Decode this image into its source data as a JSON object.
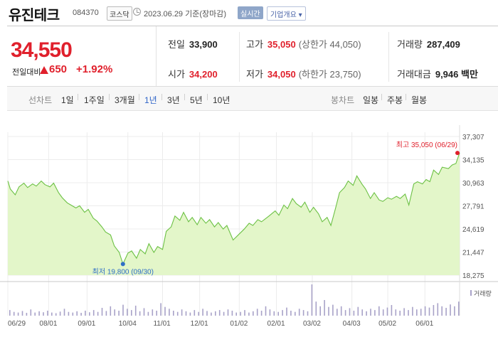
{
  "header": {
    "stock_name": "유진테크",
    "stock_code": "084370",
    "market_badge": "코스닥",
    "clock_icon": "clock-icon",
    "date_text": "2023.06.29 기준(장마감)",
    "realtime_button": "실시간",
    "company_info_button": "기업개요 ▾"
  },
  "quote": {
    "price": "34,550",
    "change_label": "전일대비",
    "change_value": "650",
    "change_pct": "+1.92%",
    "up_color": "#e0202c",
    "prev_close_label": "전일",
    "prev_close": "33,900",
    "high_label": "고가",
    "high": "35,050",
    "upper_limit": "(상한가 44,050)",
    "volume_label": "거래량",
    "volume": "287,409",
    "open_label": "시가",
    "open": "34,200",
    "low_label": "저가",
    "low": "34,050",
    "lower_limit": "(하한가 23,750)",
    "trade_value_label": "거래대금",
    "trade_value": "9,946 백만"
  },
  "tabs": {
    "line_head": "선차트",
    "line_tabs": [
      "1일",
      "1주일",
      "3개월",
      "1년",
      "3년",
      "5년",
      "10년"
    ],
    "active": "1년",
    "candle_head": "봉차트",
    "candle_tabs": [
      "일봉",
      "주봉",
      "월봉"
    ]
  },
  "chart_data": {
    "type": "area",
    "x_range": [
      "2022-06-29",
      "2023-06-29"
    ],
    "x_tick_labels": [
      "06/29",
      "08/01",
      "09/01",
      "10/04",
      "11/01",
      "12/01",
      "01/02",
      "02/01",
      "03/02",
      "04/03",
      "05/02",
      "06/01"
    ],
    "y_tick_labels": [
      "37,307",
      "34,135",
      "30,963",
      "27,791",
      "24,619",
      "21,447",
      "18,275"
    ],
    "ylim": [
      18275,
      37307
    ],
    "grid": true,
    "fill_color": "#e3f6c9",
    "line_color": "#6cc144",
    "high_annotation": "최고 35,050 (06/29)",
    "low_annotation": "최저 19,800 (09/30)",
    "high_color": "#e0202c",
    "low_color": "#2f6fc6",
    "volume_label": "거래량",
    "volume_color": "#a8a2c8",
    "price": [
      [
        "2022-06-29",
        31200
      ],
      [
        "2022-07-01",
        30100
      ],
      [
        "2022-07-05",
        29300
      ],
      [
        "2022-07-08",
        30400
      ],
      [
        "2022-07-12",
        30900
      ],
      [
        "2022-07-15",
        30300
      ],
      [
        "2022-07-19",
        30800
      ],
      [
        "2022-07-22",
        30500
      ],
      [
        "2022-07-26",
        31200
      ],
      [
        "2022-07-29",
        30700
      ],
      [
        "2022-08-02",
        30400
      ],
      [
        "2022-08-05",
        30900
      ],
      [
        "2022-08-09",
        29600
      ],
      [
        "2022-08-12",
        28900
      ],
      [
        "2022-08-16",
        28200
      ],
      [
        "2022-08-19",
        27900
      ],
      [
        "2022-08-23",
        27500
      ],
      [
        "2022-08-26",
        27800
      ],
      [
        "2022-08-30",
        26900
      ],
      [
        "2022-09-02",
        27300
      ],
      [
        "2022-09-06",
        26100
      ],
      [
        "2022-09-09",
        25700
      ],
      [
        "2022-09-13",
        24900
      ],
      [
        "2022-09-16",
        24200
      ],
      [
        "2022-09-20",
        23800
      ],
      [
        "2022-09-23",
        22300
      ],
      [
        "2022-09-27",
        21400
      ],
      [
        "2022-09-30",
        19800
      ],
      [
        "2022-10-04",
        21300
      ],
      [
        "2022-10-07",
        21600
      ],
      [
        "2022-10-11",
        20600
      ],
      [
        "2022-10-14",
        21800
      ],
      [
        "2022-10-18",
        21200
      ],
      [
        "2022-10-21",
        22600
      ],
      [
        "2022-10-25",
        21400
      ],
      [
        "2022-10-28",
        22200
      ],
      [
        "2022-11-01",
        21800
      ],
      [
        "2022-11-04",
        24300
      ],
      [
        "2022-11-08",
        24900
      ],
      [
        "2022-11-11",
        26400
      ],
      [
        "2022-11-15",
        25800
      ],
      [
        "2022-11-18",
        26900
      ],
      [
        "2022-11-22",
        25600
      ],
      [
        "2022-11-25",
        26200
      ],
      [
        "2022-11-29",
        25200
      ],
      [
        "2022-12-02",
        26200
      ],
      [
        "2022-12-06",
        25400
      ],
      [
        "2022-12-09",
        25900
      ],
      [
        "2022-12-13",
        24900
      ],
      [
        "2022-12-16",
        25500
      ],
      [
        "2022-12-20",
        24600
      ],
      [
        "2022-12-23",
        25100
      ],
      [
        "2022-12-28",
        23100
      ],
      [
        "2023-01-03",
        24100
      ],
      [
        "2023-01-06",
        24600
      ],
      [
        "2023-01-10",
        25400
      ],
      [
        "2023-01-13",
        25100
      ],
      [
        "2023-01-17",
        25900
      ],
      [
        "2023-01-20",
        25600
      ],
      [
        "2023-01-26",
        26400
      ],
      [
        "2023-01-31",
        27100
      ],
      [
        "2023-02-03",
        26500
      ],
      [
        "2023-02-07",
        27900
      ],
      [
        "2023-02-10",
        27400
      ],
      [
        "2023-02-14",
        28800
      ],
      [
        "2023-02-17",
        28100
      ],
      [
        "2023-02-21",
        27600
      ],
      [
        "2023-02-24",
        28300
      ],
      [
        "2023-02-28",
        26900
      ],
      [
        "2023-03-03",
        27600
      ],
      [
        "2023-03-07",
        26700
      ],
      [
        "2023-03-10",
        25600
      ],
      [
        "2023-03-14",
        26200
      ],
      [
        "2023-03-17",
        25100
      ],
      [
        "2023-03-21",
        27600
      ],
      [
        "2023-03-24",
        29600
      ],
      [
        "2023-03-28",
        30300
      ],
      [
        "2023-03-31",
        31200
      ],
      [
        "2023-04-04",
        30600
      ],
      [
        "2023-04-07",
        31900
      ],
      [
        "2023-04-11",
        30800
      ],
      [
        "2023-04-14",
        30100
      ],
      [
        "2023-04-18",
        28800
      ],
      [
        "2023-04-21",
        29600
      ],
      [
        "2023-04-25",
        28600
      ],
      [
        "2023-04-28",
        28400
      ],
      [
        "2023-05-02",
        28900
      ],
      [
        "2023-05-05",
        28700
      ],
      [
        "2023-05-09",
        29100
      ],
      [
        "2023-05-12",
        28800
      ],
      [
        "2023-05-16",
        29400
      ],
      [
        "2023-05-19",
        27900
      ],
      [
        "2023-05-23",
        30800
      ],
      [
        "2023-05-26",
        31100
      ],
      [
        "2023-05-30",
        30800
      ],
      [
        "2023-06-02",
        31400
      ],
      [
        "2023-06-05",
        31100
      ],
      [
        "2023-06-08",
        32700
      ],
      [
        "2023-06-12",
        32100
      ],
      [
        "2023-06-15",
        33100
      ],
      [
        "2023-06-20",
        32900
      ],
      [
        "2023-06-23",
        33400
      ],
      [
        "2023-06-26",
        33600
      ],
      [
        "2023-06-29",
        35050
      ]
    ],
    "volume": [
      0.18,
      0.12,
      0.1,
      0.15,
      0.09,
      0.2,
      0.1,
      0.14,
      0.11,
      0.16,
      0.1,
      0.08,
      0.13,
      0.22,
      0.12,
      0.1,
      0.14,
      0.09,
      0.16,
      0.11,
      0.18,
      0.12,
      0.25,
      0.15,
      0.3,
      0.2,
      0.16,
      0.35,
      0.22,
      0.18,
      0.32,
      0.14,
      0.24,
      0.12,
      0.2,
      0.16,
      0.4,
      0.28,
      0.22,
      0.16,
      0.12,
      0.2,
      0.14,
      0.1,
      0.18,
      0.12,
      0.22,
      0.15,
      0.1,
      0.14,
      0.18,
      0.12,
      0.2,
      0.16,
      0.1,
      0.12,
      0.18,
      0.1,
      0.14,
      0.22,
      0.16,
      0.3,
      0.2,
      0.14,
      0.12,
      0.18,
      0.26,
      0.16,
      0.12,
      0.22,
      0.18,
      0.14,
      1.0,
      0.45,
      0.3,
      0.5,
      0.28,
      0.35,
      0.22,
      0.3,
      0.18,
      0.24,
      0.16,
      0.28,
      0.2,
      0.14,
      0.22,
      0.18,
      0.3,
      0.2,
      0.26,
      0.34,
      0.2,
      0.16,
      0.24,
      0.18,
      0.28,
      0.2,
      0.22,
      0.3,
      0.26,
      0.34,
      0.4,
      0.3,
      0.25,
      0.36,
      0.3,
      0.45
    ]
  }
}
